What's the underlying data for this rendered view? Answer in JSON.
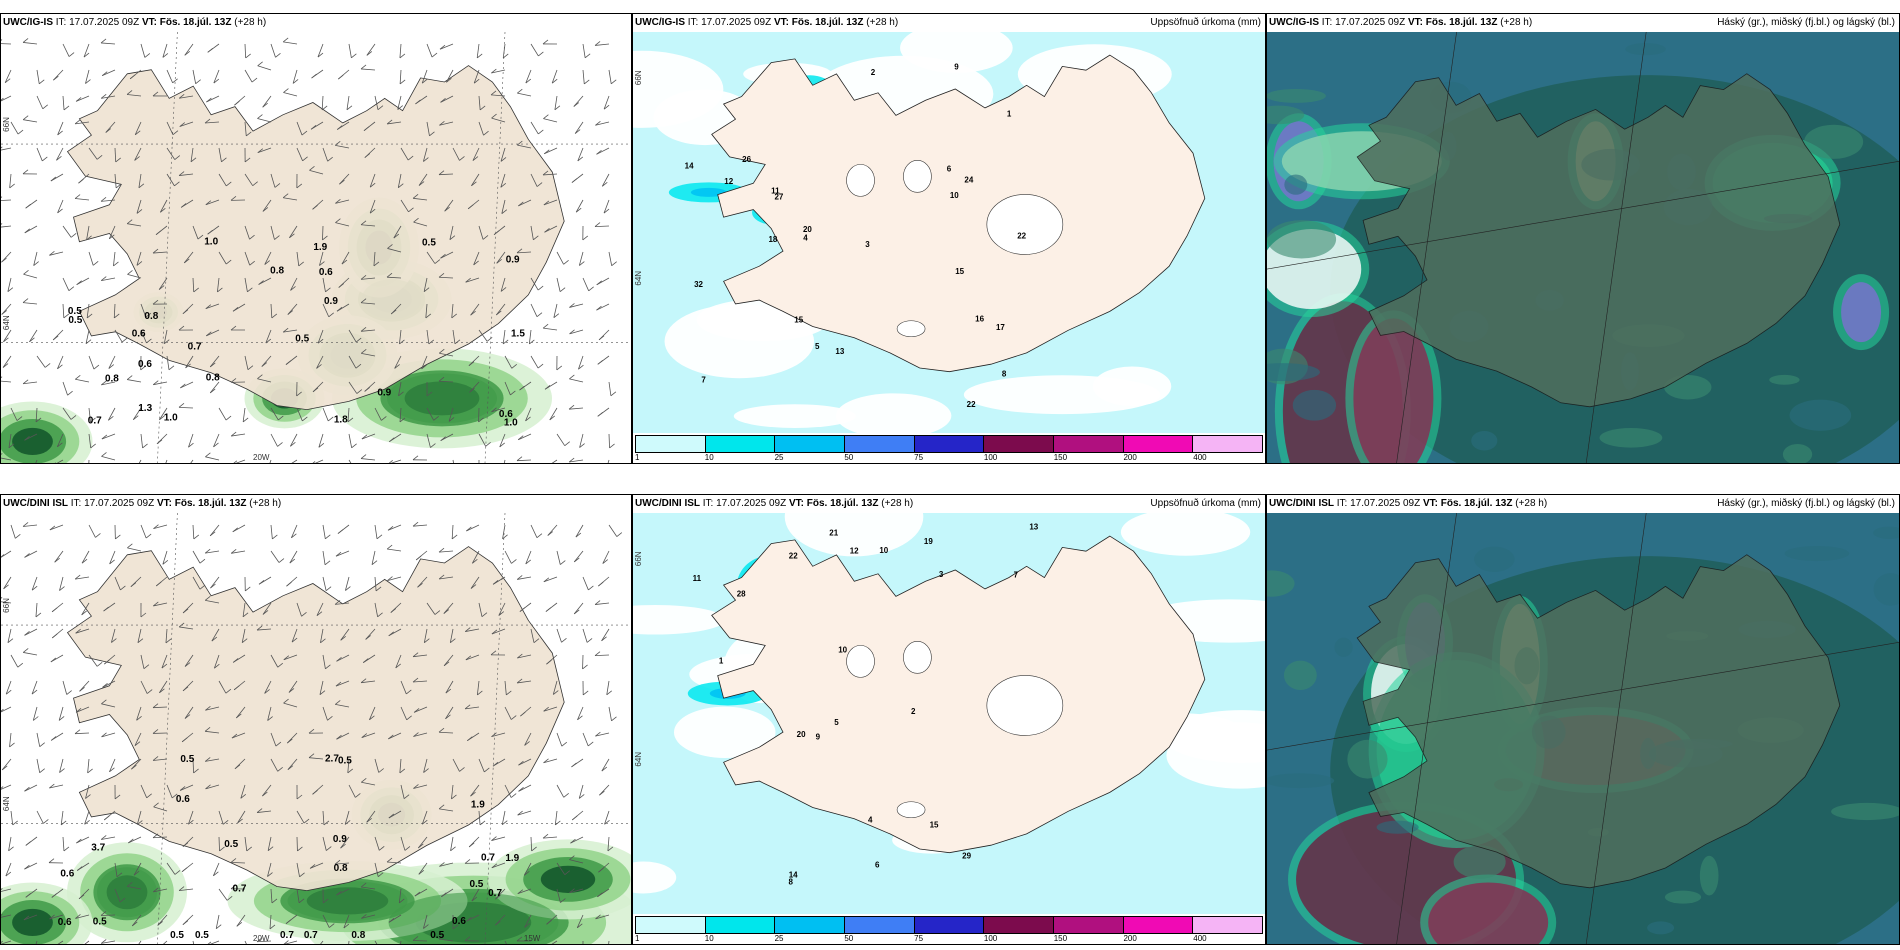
{
  "rows": [
    {
      "model": "UWC/IG-IS",
      "panels": [
        {
          "kind": "wind",
          "model": "UWC/IG-IS",
          "it_label": "IT:",
          "it_value": "17.07.2025 09Z",
          "vt_label": "VT:",
          "vt_value": "Fös. 18.júl. 13Z",
          "lead": "(+28 h)",
          "right_title": "",
          "values": [
            "0.8",
            "0.8",
            "0.5",
            "0.7",
            "0.5",
            "1.0",
            "0.8",
            "0.6",
            "0.6",
            "1.3",
            "0.6",
            "0.9",
            "0.5",
            "0.7",
            "0.9",
            "1.8",
            "0.9",
            "1.0",
            "1.0",
            "0.6",
            "1.9",
            "0.8",
            "0.5",
            "1.5"
          ],
          "axis": [
            "66N",
            "64N",
            "20W"
          ]
        },
        {
          "kind": "precip",
          "model": "UWC/IG-IS",
          "it_label": "IT:",
          "it_value": "17.07.2025 09Z",
          "vt_label": "VT:",
          "vt_value": "Fös. 18.júl. 13Z",
          "lead": "(+28 h)",
          "right_title": "Uppsöfnuð úrkoma (mm)",
          "values": [
            "10",
            "11",
            "22",
            "18",
            "17",
            "14",
            "15",
            "24",
            "32",
            "27",
            "20",
            "26",
            "13",
            "22",
            "15",
            "12",
            "16",
            "7",
            "6",
            "4",
            "3",
            "2",
            "1",
            "5",
            "8",
            "9"
          ],
          "legend": [
            "1",
            "10",
            "25",
            "50",
            "75",
            "100",
            "150",
            "200",
            "400"
          ],
          "axis": [
            "66N",
            "64N"
          ]
        },
        {
          "kind": "cloud",
          "model": "UWC/IG-IS",
          "it_label": "IT:",
          "it_value": "17.07.2025 09Z",
          "vt_label": "VT:",
          "vt_value": "Fös. 18.júl. 13Z",
          "lead": "(+28 h)",
          "right_title": "Háský (gr.), miðský (fj.bl.) og lágský (bl.)"
        }
      ]
    },
    {
      "model": "UWC/DINI ISL",
      "panels": [
        {
          "kind": "wind",
          "model": "UWC/DINI ISL",
          "it_label": "IT:",
          "it_value": "17.07.2025 09Z",
          "vt_label": "VT:",
          "vt_value": "Fös. 18.júl. 13Z",
          "lead": "(+28 h)",
          "right_title": "",
          "values": [
            "0.6",
            "0.9",
            "0.6",
            "0.5",
            "0.7",
            "0.5",
            "0.7",
            "0.6",
            "0.5",
            "0.5",
            "0.7",
            "0.8",
            "0.7",
            "1.9",
            "2.7",
            "1.9",
            "3.7",
            "0.5",
            "0.8",
            "0.5",
            "0.6",
            "0.7",
            "0.5",
            "0.5"
          ],
          "axis": [
            "66N",
            "64N",
            "20W",
            "15W"
          ]
        },
        {
          "kind": "precip",
          "model": "UWC/DINI ISL",
          "it_label": "IT:",
          "it_value": "17.07.2025 09Z",
          "vt_label": "VT:",
          "vt_value": "Fös. 18.júl. 13Z",
          "lead": "(+28 h)",
          "right_title": "Uppsöfnuð úrkoma (mm)",
          "values": [
            "10",
            "21",
            "19",
            "14",
            "29",
            "22",
            "28",
            "20",
            "13",
            "12",
            "10",
            "7",
            "6",
            "5",
            "4",
            "3",
            "2",
            "1",
            "8",
            "9",
            "11",
            "15"
          ],
          "legend": [
            "1",
            "10",
            "25",
            "50",
            "75",
            "100",
            "150",
            "200",
            "400"
          ],
          "axis": [
            "66N",
            "64N"
          ]
        },
        {
          "kind": "cloud",
          "model": "UWC/DINI ISL",
          "it_label": "IT:",
          "it_value": "17.07.2025 09Z",
          "vt_label": "VT:",
          "vt_value": "Fös. 18.júl. 13Z",
          "lead": "(+28 h)",
          "right_title": "Háský (gr.), miðský (fj.bl.) og lágský (bl.)"
        }
      ]
    }
  ],
  "colors": {
    "land": "#efe3d3",
    "sea_white": "#ffffff",
    "precip_legend": [
      "#cffafc",
      "#00e6ec",
      "#00bff2",
      "#3f7ef5",
      "#2525c8",
      "#7c0b4d",
      "#b0107f",
      "#f00ab4",
      "#f5b4f5"
    ],
    "wind_greens": [
      "#d6f0d0",
      "#92d38a",
      "#3f9a48",
      "#12552a"
    ],
    "cloud_base": "#205f5a",
    "cloud_sea": "#2c6f86"
  }
}
